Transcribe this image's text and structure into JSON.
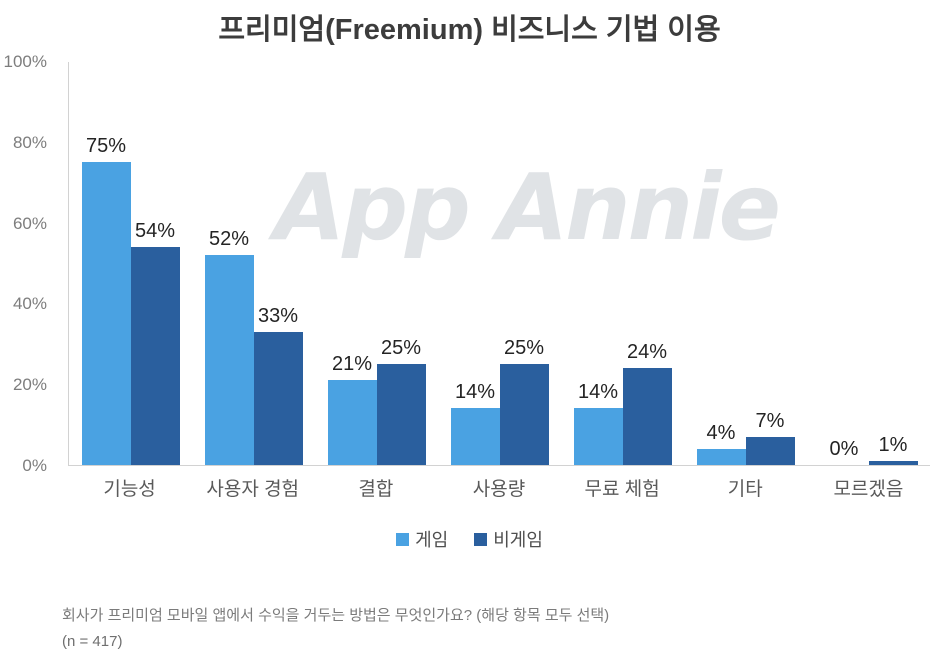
{
  "title": "프리미엄(Freemium) 비즈니스 기법 이용",
  "watermark": {
    "text": "App Annie"
  },
  "footer": {
    "question": "회사가 프리미엄 모바일 앱에서 수익을 거두는 방법은 무엇인가요? (해당 항목 모두 선택)",
    "sample": "(n = 417)"
  },
  "colors": {
    "series_game": "#4AA2E2",
    "series_nongame": "#2A5F9E",
    "axis_line": "#d2d2d2",
    "axis_text": "#7d7d7d",
    "watermark": "#e0e3e6"
  },
  "chart_data": {
    "type": "bar",
    "title": "프리미엄(Freemium) 비즈니스 기법 이용",
    "categories": [
      "기능성",
      "사용자 경험",
      "결합",
      "사용량",
      "무료 체험",
      "기타",
      "모르겠음"
    ],
    "series": [
      {
        "name": "게임",
        "color": "#4AA2E2",
        "values": [
          75,
          52,
          21,
          14,
          14,
          4,
          0
        ]
      },
      {
        "name": "비게임",
        "color": "#2A5F9E",
        "values": [
          54,
          33,
          25,
          25,
          24,
          7,
          1
        ]
      }
    ],
    "value_suffix": "%",
    "xlabel": "",
    "ylabel": "",
    "ylim": [
      0,
      100
    ],
    "yticks": [
      {
        "label": "100%",
        "value": 100
      },
      {
        "label": "80%",
        "value": 80
      },
      {
        "label": "60%",
        "value": 60
      },
      {
        "label": "40%",
        "value": 40
      },
      {
        "label": "20%",
        "value": 20
      },
      {
        "label": "0%",
        "value": 0
      }
    ],
    "grid": false,
    "legend_position": "bottom",
    "data_labels": true
  }
}
